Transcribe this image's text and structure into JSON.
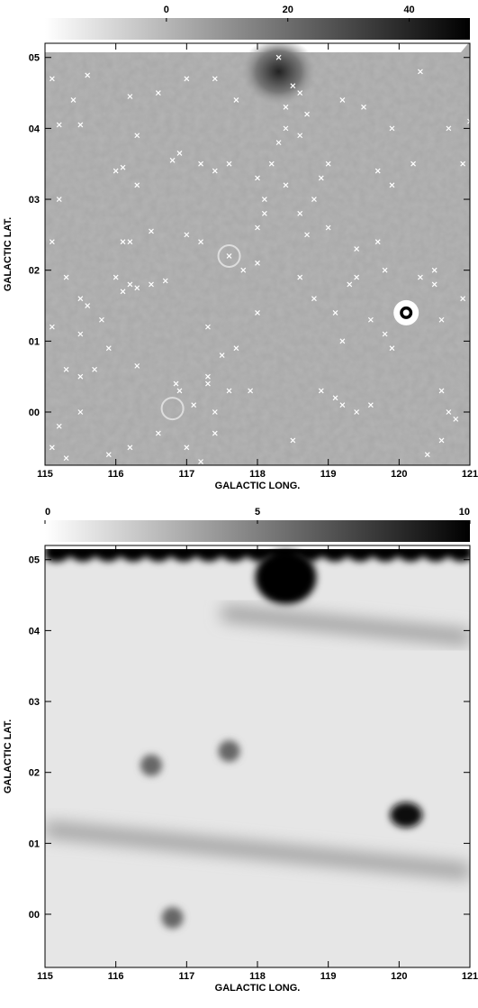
{
  "chart_data": [
    {
      "type": "heatmap",
      "panel": "top",
      "xlabel": "GALACTIC LONG.",
      "ylabel": "GALACTIC LAT.",
      "xlim": [
        115,
        121
      ],
      "ylim": [
        -0.75,
        5.2
      ],
      "x_ticks": [
        "115",
        "116",
        "117",
        "118",
        "119",
        "120",
        "121"
      ],
      "y_ticks": [
        "00",
        "01",
        "02",
        "03",
        "04",
        "05"
      ],
      "colorbar": {
        "range": [
          -20,
          50
        ],
        "ticks": [
          "0",
          "20",
          "40"
        ],
        "tick_values": [
          0,
          20,
          40
        ],
        "colormap": "grayscale white-to-black"
      },
      "features": [
        {
          "kind": "bright-source-ring",
          "l": 120.1,
          "b": 1.4
        },
        {
          "kind": "diffuse-emission",
          "l": 118.3,
          "b": 4.8
        },
        {
          "kind": "ring",
          "l": 117.6,
          "b": 2.2
        },
        {
          "kind": "ring",
          "l": 116.8,
          "b": 0.05
        }
      ],
      "point_sources": [
        [
          115.1,
          4.7
        ],
        [
          115.2,
          4.05
        ],
        [
          115.5,
          4.05
        ],
        [
          115.6,
          4.75
        ],
        [
          115.4,
          4.4
        ],
        [
          115.2,
          3.0
        ],
        [
          115.1,
          2.4
        ],
        [
          115.3,
          1.9
        ],
        [
          115.5,
          1.6
        ],
        [
          115.6,
          1.5
        ],
        [
          115.8,
          1.3
        ],
        [
          115.5,
          1.1
        ],
        [
          115.1,
          1.2
        ],
        [
          115.3,
          0.6
        ],
        [
          115.5,
          0.5
        ],
        [
          115.7,
          0.6
        ],
        [
          115.9,
          0.9
        ],
        [
          115.5,
          0.0
        ],
        [
          115.2,
          -0.2
        ],
        [
          115.1,
          -0.5
        ],
        [
          115.3,
          -0.65
        ],
        [
          115.9,
          -0.6
        ],
        [
          116.2,
          -0.5
        ],
        [
          116.6,
          -0.3
        ],
        [
          116.0,
          1.9
        ],
        [
          116.1,
          1.7
        ],
        [
          116.2,
          1.8
        ],
        [
          116.3,
          1.75
        ],
        [
          116.1,
          2.4
        ],
        [
          116.2,
          2.4
        ],
        [
          116.5,
          2.55
        ],
        [
          116.0,
          3.4
        ],
        [
          116.1,
          3.45
        ],
        [
          116.3,
          3.2
        ],
        [
          116.3,
          3.9
        ],
        [
          116.2,
          4.45
        ],
        [
          116.6,
          4.5
        ],
        [
          116.8,
          3.55
        ],
        [
          116.9,
          3.65
        ],
        [
          116.5,
          1.8
        ],
        [
          116.3,
          0.65
        ],
        [
          116.7,
          1.85
        ],
        [
          116.85,
          0.4
        ],
        [
          116.9,
          0.3
        ],
        [
          117.1,
          0.1
        ],
        [
          117.0,
          2.5
        ],
        [
          117.2,
          2.4
        ],
        [
          117.3,
          1.2
        ],
        [
          117.3,
          0.4
        ],
        [
          117.3,
          0.5
        ],
        [
          117.4,
          0.0
        ],
        [
          117.4,
          -0.3
        ],
        [
          117.0,
          -0.5
        ],
        [
          117.2,
          -0.7
        ],
        [
          117.2,
          3.5
        ],
        [
          117.4,
          3.4
        ],
        [
          117.6,
          3.5
        ],
        [
          117.4,
          4.7
        ],
        [
          117.7,
          4.4
        ],
        [
          117.8,
          2.0
        ],
        [
          117.6,
          2.2
        ],
        [
          117.7,
          0.9
        ],
        [
          117.5,
          0.8
        ],
        [
          117.6,
          0.3
        ],
        [
          117.9,
          0.3
        ],
        [
          118.0,
          1.4
        ],
        [
          118.0,
          2.1
        ],
        [
          118.0,
          2.6
        ],
        [
          118.1,
          2.8
        ],
        [
          118.0,
          3.3
        ],
        [
          118.1,
          3.0
        ],
        [
          118.2,
          3.5
        ],
        [
          118.4,
          3.2
        ],
        [
          118.3,
          3.8
        ],
        [
          118.4,
          4.0
        ],
        [
          118.6,
          3.9
        ],
        [
          118.7,
          4.2
        ],
        [
          118.6,
          4.5
        ],
        [
          118.4,
          4.3
        ],
        [
          118.3,
          5.0
        ],
        [
          118.5,
          4.6
        ],
        [
          118.6,
          2.8
        ],
        [
          118.7,
          2.5
        ],
        [
          118.8,
          3.0
        ],
        [
          118.9,
          3.3
        ],
        [
          119.0,
          3.5
        ],
        [
          118.8,
          1.6
        ],
        [
          118.6,
          1.9
        ],
        [
          119.0,
          2.6
        ],
        [
          119.1,
          1.4
        ],
        [
          119.2,
          1.0
        ],
        [
          119.3,
          1.8
        ],
        [
          119.4,
          1.9
        ],
        [
          119.4,
          2.3
        ],
        [
          119.2,
          4.4
        ],
        [
          119.5,
          4.3
        ],
        [
          119.9,
          4.0
        ],
        [
          119.7,
          3.4
        ],
        [
          119.9,
          3.2
        ],
        [
          119.7,
          2.4
        ],
        [
          119.8,
          2.0
        ],
        [
          119.6,
          1.3
        ],
        [
          119.8,
          1.1
        ],
        [
          119.9,
          0.9
        ],
        [
          120.2,
          3.5
        ],
        [
          120.3,
          1.9
        ],
        [
          120.5,
          1.8
        ],
        [
          120.6,
          1.3
        ],
        [
          120.6,
          0.3
        ],
        [
          120.7,
          0.0
        ],
        [
          120.6,
          -0.4
        ],
        [
          120.4,
          -0.6
        ],
        [
          120.8,
          -0.1
        ],
        [
          120.9,
          1.6
        ],
        [
          121.0,
          4.1
        ],
        [
          120.9,
          3.5
        ],
        [
          120.7,
          4.0
        ],
        [
          120.5,
          2.0
        ],
        [
          120.3,
          4.8
        ],
        [
          118.9,
          0.3
        ],
        [
          119.1,
          0.2
        ],
        [
          119.2,
          0.1
        ],
        [
          119.4,
          0.0
        ],
        [
          119.6,
          0.1
        ],
        [
          118.5,
          -0.4
        ],
        [
          117.0,
          4.7
        ]
      ]
    },
    {
      "type": "heatmap",
      "panel": "bottom",
      "xlabel": "GALACTIC LONG.",
      "ylabel": "GALACTIC LAT.",
      "xlim": [
        115,
        121
      ],
      "ylim": [
        -0.75,
        5.2
      ],
      "x_ticks": [
        "115",
        "116",
        "117",
        "118",
        "119",
        "120",
        "121"
      ],
      "y_ticks": [
        "00",
        "01",
        "02",
        "03",
        "04",
        "05"
      ],
      "colorbar": {
        "range": [
          0,
          10
        ],
        "ticks": [
          "0",
          "5",
          "10"
        ],
        "tick_values": [
          0,
          5,
          10
        ],
        "colormap": "grayscale white-to-black"
      },
      "features": [
        {
          "kind": "dark-blob",
          "l": 118.4,
          "b": 4.75
        },
        {
          "kind": "dark-blob",
          "l": 120.1,
          "b": 1.4
        },
        {
          "kind": "dark-blob",
          "l": 117.6,
          "b": 2.3
        },
        {
          "kind": "dark-blob",
          "l": 116.5,
          "b": 2.1
        },
        {
          "kind": "dark-blob",
          "l": 116.8,
          "b": -0.05
        },
        {
          "kind": "dark-band",
          "l_from": 115.0,
          "l_to": 121.0,
          "b_from": 1.2,
          "b_to": 0.6
        },
        {
          "kind": "dark-band",
          "l_from": 117.5,
          "l_to": 121.0,
          "b_from": 4.25,
          "b_to": 3.9
        }
      ]
    }
  ]
}
